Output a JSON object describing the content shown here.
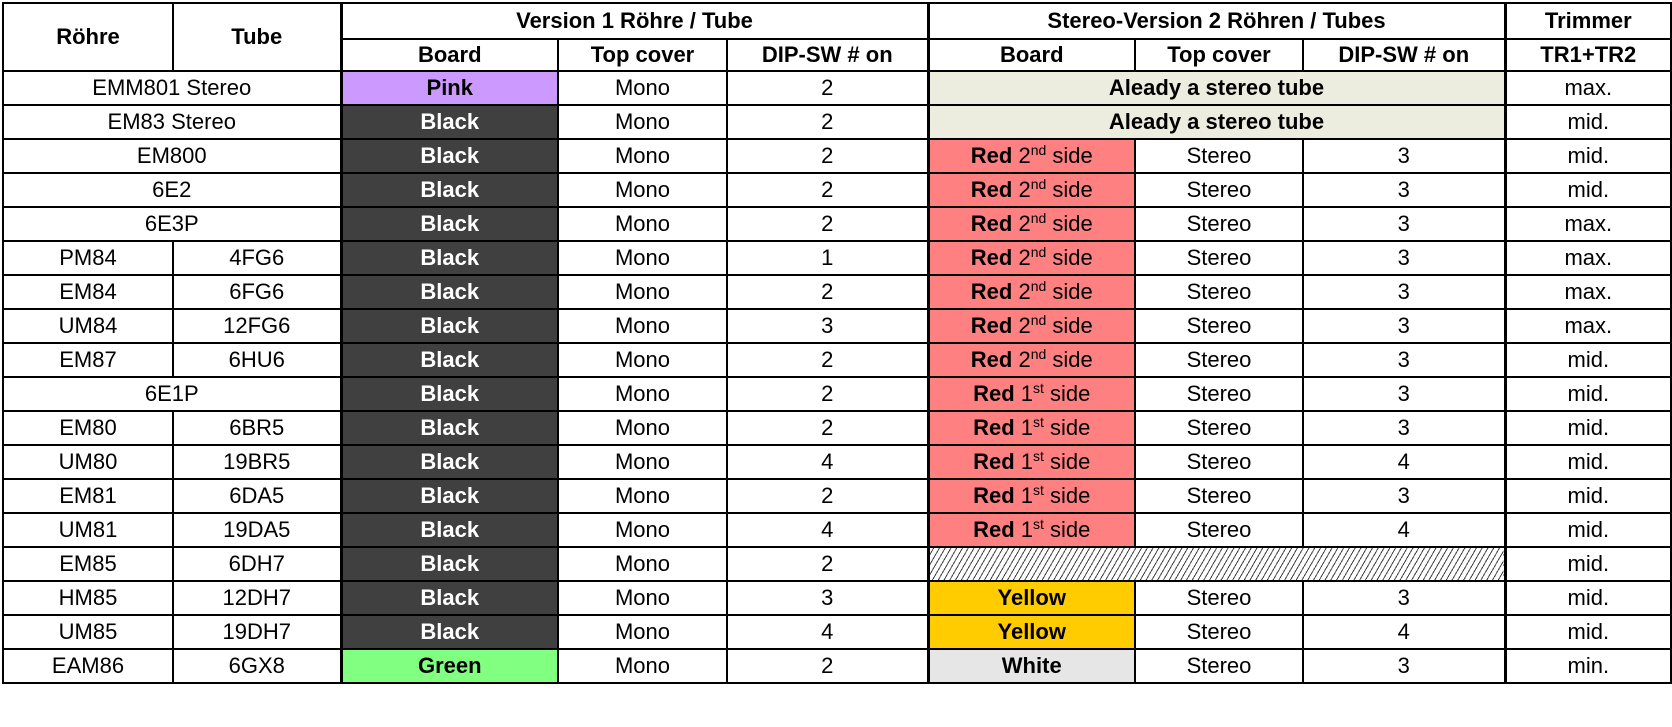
{
  "header": {
    "rohre": "Röhre",
    "tube": "Tube",
    "version1": "Version 1 Röhre / Tube",
    "stereo_version": "Stereo-Version 2 Röhren / Tubes",
    "trimmer": "Trimmer",
    "board": "Board",
    "top_cover": "Top cover",
    "dip_sw": "DIP-SW # on",
    "board2": "Board",
    "top_cover2": "Top cover",
    "dip_sw2": "DIP-SW # on",
    "tr": "TR1+TR2"
  },
  "colors": {
    "pink": "#cc99ff",
    "black": "#404040",
    "green": "#80ff80",
    "red": "#ff8080",
    "yellow": "#ffcc00",
    "white": "#e6e6e6",
    "stereo_note_bg": "#ededdf"
  },
  "rows": [
    {
      "rohre": "EMM801 Stereo",
      "tube": null,
      "board": "Pink",
      "board_color": "pink",
      "top": "Mono",
      "dip": "2",
      "stereo": {
        "note": "Aleady a stereo tube"
      },
      "trimmer": "max."
    },
    {
      "rohre": "EM83 Stereo",
      "tube": null,
      "board": "Black",
      "board_color": "black",
      "top": "Mono",
      "dip": "2",
      "stereo": {
        "note": "Aleady a stereo tube"
      },
      "trimmer": "mid."
    },
    {
      "rohre": "EM800",
      "tube": null,
      "board": "Black",
      "board_color": "black",
      "top": "Mono",
      "dip": "2",
      "stereo": {
        "board": "Red",
        "num": "2",
        "suffix": "nd",
        "side": "side",
        "color": "red",
        "top": "Stereo",
        "dip": "3"
      },
      "trimmer": "mid."
    },
    {
      "rohre": "6E2",
      "tube": null,
      "board": "Black",
      "board_color": "black",
      "top": "Mono",
      "dip": "2",
      "stereo": {
        "board": "Red",
        "num": "2",
        "suffix": "nd",
        "side": "side",
        "color": "red",
        "top": "Stereo",
        "dip": "3"
      },
      "trimmer": "mid."
    },
    {
      "rohre": "6E3P",
      "tube": null,
      "board": "Black",
      "board_color": "black",
      "top": "Mono",
      "dip": "2",
      "stereo": {
        "board": "Red",
        "num": "2",
        "suffix": "nd",
        "side": "side",
        "color": "red",
        "top": "Stereo",
        "dip": "3"
      },
      "trimmer": "max."
    },
    {
      "rohre": "PM84",
      "tube": "4FG6",
      "board": "Black",
      "board_color": "black",
      "top": "Mono",
      "dip": "1",
      "stereo": {
        "board": "Red",
        "num": "2",
        "suffix": "nd",
        "side": "side",
        "color": "red",
        "top": "Stereo",
        "dip": "3"
      },
      "trimmer": "max."
    },
    {
      "rohre": "EM84",
      "tube": "6FG6",
      "board": "Black",
      "board_color": "black",
      "top": "Mono",
      "dip": "2",
      "stereo": {
        "board": "Red",
        "num": "2",
        "suffix": "nd",
        "side": "side",
        "color": "red",
        "top": "Stereo",
        "dip": "3"
      },
      "trimmer": "max."
    },
    {
      "rohre": "UM84",
      "tube": "12FG6",
      "board": "Black",
      "board_color": "black",
      "top": "Mono",
      "dip": "3",
      "stereo": {
        "board": "Red",
        "num": "2",
        "suffix": "nd",
        "side": "side",
        "color": "red",
        "top": "Stereo",
        "dip": "3"
      },
      "trimmer": "max."
    },
    {
      "rohre": "EM87",
      "tube": "6HU6",
      "board": "Black",
      "board_color": "black",
      "top": "Mono",
      "dip": "2",
      "stereo": {
        "board": "Red",
        "num": "2",
        "suffix": "nd",
        "side": "side",
        "color": "red",
        "top": "Stereo",
        "dip": "3"
      },
      "trimmer": "mid."
    },
    {
      "rohre": "6E1P",
      "tube": null,
      "board": "Black",
      "board_color": "black",
      "top": "Mono",
      "dip": "2",
      "stereo": {
        "board": "Red",
        "num": "1",
        "suffix": "st",
        "side": "side",
        "color": "red",
        "top": "Stereo",
        "dip": "3"
      },
      "trimmer": "mid."
    },
    {
      "rohre": "EM80",
      "tube": "6BR5",
      "board": "Black",
      "board_color": "black",
      "top": "Mono",
      "dip": "2",
      "stereo": {
        "board": "Red",
        "num": "1",
        "suffix": "st",
        "side": "side",
        "color": "red",
        "top": "Stereo",
        "dip": "3"
      },
      "trimmer": "mid."
    },
    {
      "rohre": "UM80",
      "tube": "19BR5",
      "board": "Black",
      "board_color": "black",
      "top": "Mono",
      "dip": "4",
      "stereo": {
        "board": "Red",
        "num": "1",
        "suffix": "st",
        "side": "side",
        "color": "red",
        "top": "Stereo",
        "dip": "4"
      },
      "trimmer": "mid."
    },
    {
      "rohre": "EM81",
      "tube": "6DA5",
      "board": "Black",
      "board_color": "black",
      "top": "Mono",
      "dip": "2",
      "stereo": {
        "board": "Red",
        "num": "1",
        "suffix": "st",
        "side": "side",
        "color": "red",
        "top": "Stereo",
        "dip": "3"
      },
      "trimmer": "mid."
    },
    {
      "rohre": "UM81",
      "tube": "19DA5",
      "board": "Black",
      "board_color": "black",
      "top": "Mono",
      "dip": "4",
      "stereo": {
        "board": "Red",
        "num": "1",
        "suffix": "st",
        "side": "side",
        "color": "red",
        "top": "Stereo",
        "dip": "4"
      },
      "trimmer": "mid."
    },
    {
      "rohre": "EM85",
      "tube": "6DH7",
      "board": "Black",
      "board_color": "black",
      "top": "Mono",
      "dip": "2",
      "stereo": {
        "hatched": true
      },
      "trimmer": "mid."
    },
    {
      "rohre": "HM85",
      "tube": "12DH7",
      "board": "Black",
      "board_color": "black",
      "top": "Mono",
      "dip": "3",
      "stereo": {
        "board": "Yellow",
        "color": "yellow",
        "top": "Stereo",
        "dip": "3"
      },
      "trimmer": "mid."
    },
    {
      "rohre": "UM85",
      "tube": "19DH7",
      "board": "Black",
      "board_color": "black",
      "top": "Mono",
      "dip": "4",
      "stereo": {
        "board": "Yellow",
        "color": "yellow",
        "top": "Stereo",
        "dip": "4"
      },
      "trimmer": "mid."
    },
    {
      "rohre": "EAM86",
      "tube": "6GX8",
      "board": "Green",
      "board_color": "green",
      "top": "Mono",
      "dip": "2",
      "stereo": {
        "board": "White",
        "color": "white",
        "top": "Stereo",
        "dip": "3"
      },
      "trimmer": "min."
    }
  ]
}
